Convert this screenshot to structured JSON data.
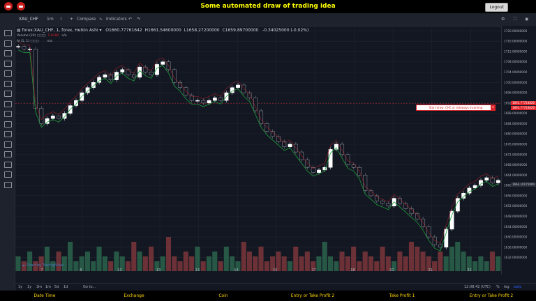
{
  "header": {
    "title": "Some automated draw of trading idea",
    "logout_label": "Logout"
  },
  "toolbar": {
    "symbol": "XAU_CHF",
    "interval": "1m",
    "compare_label": "Compare",
    "indicators_label": "Indicators"
  },
  "legend": {
    "symbol_line": "forex:XAU_CHF, 1, forex, Heikin Ashi",
    "open": "O1660.77761642",
    "high": "H1661.54600000",
    "low": "L1658.27200000",
    "close": "C1659.89700000",
    "change": "-0.34025000 (-0.02%)",
    "volume_label": "Volume (20)",
    "volume_value": "1.9100",
    "volume_na": "n/a",
    "indicator_label": "AI (1, 1)",
    "indicator_na": "n/a"
  },
  "callout": {
    "text": "Start draw, CHC or sideways incoming",
    "close": "×"
  },
  "price_tags": {
    "upper": "1691.77724826",
    "lower": "1691.77724826",
    "last": "1662.10175000"
  },
  "watermark": "Chart by TradingView",
  "bottom_toolbar": {
    "ranges": [
      "1y",
      "1y",
      "3m",
      "1m",
      "5d",
      "1d",
      "Go to..."
    ],
    "clock": "12:08:42 (UTC)",
    "percent": "%",
    "log": "log",
    "auto": "auto"
  },
  "footer": {
    "items": [
      "Date Time",
      "Exchange",
      "Coin",
      "Entry or Take Profit 2",
      "Take Profit 1",
      "Entry or Take Profit 2"
    ]
  },
  "chart_data": {
    "type": "candlestick",
    "ylim": [
      1630,
      1722
    ],
    "y_ticks": [
      1720,
      1716,
      1712,
      1708,
      1704,
      1700,
      1696,
      1692,
      1688,
      1684,
      1680,
      1676,
      1672,
      1668,
      1664,
      1660,
      1656,
      1652,
      1648,
      1644,
      1640,
      1636,
      1632
    ],
    "x_ticks": [
      "7",
      "8",
      "10",
      "13",
      "13",
      "14",
      "15",
      "17",
      "18",
      "20",
      "21",
      "22",
      "13:00"
    ],
    "close_path": [
      1714,
      1713,
      1713,
      1690,
      1684,
      1686,
      1687,
      1686,
      1688,
      1691,
      1693,
      1696,
      1698,
      1700,
      1702,
      1703,
      1701,
      1704,
      1705,
      1703,
      1702,
      1706,
      1704,
      1703,
      1707,
      1708,
      1705,
      1700,
      1698,
      1695,
      1693,
      1693,
      1692,
      1693,
      1694,
      1693,
      1696,
      1698,
      1699,
      1696,
      1694,
      1689,
      1684,
      1681,
      1679,
      1677,
      1675,
      1676,
      1673,
      1670,
      1667,
      1665,
      1666,
      1667,
      1674,
      1676,
      1672,
      1668,
      1667,
      1664,
      1658,
      1656,
      1654,
      1653,
      1652,
      1655,
      1653,
      1651,
      1649,
      1647,
      1644,
      1640,
      1637,
      1636,
      1643,
      1650,
      1655,
      1657,
      1659,
      1660,
      1662,
      1663,
      1661,
      1662
    ],
    "volume": [
      3,
      2,
      4,
      2,
      3,
      5,
      2,
      4,
      3,
      6,
      2,
      3,
      4,
      2,
      5,
      3,
      2,
      4,
      3,
      2,
      6,
      4,
      3,
      5,
      2,
      3,
      7,
      3,
      2,
      4,
      3,
      5,
      2,
      3,
      4,
      2,
      5,
      3,
      2,
      6,
      4,
      3,
      5,
      2,
      3,
      4,
      3,
      2,
      5,
      3,
      4,
      2,
      3,
      6,
      3,
      2,
      4,
      3,
      5,
      2,
      4,
      3,
      2,
      5,
      3,
      2,
      4,
      3,
      6,
      5,
      4,
      3,
      2,
      4,
      3,
      5,
      6,
      4,
      3,
      2,
      3,
      2,
      4,
      3
    ]
  }
}
